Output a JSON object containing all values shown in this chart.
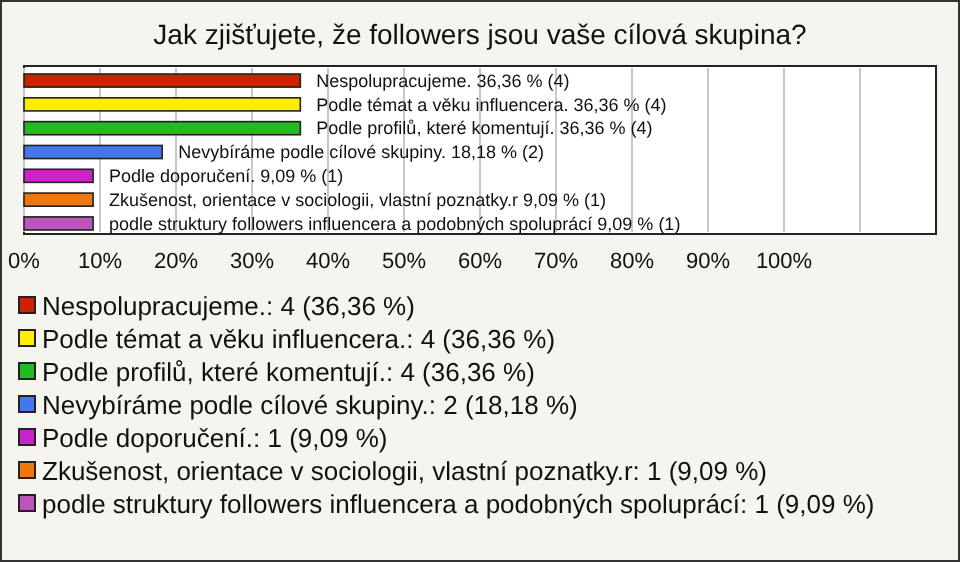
{
  "chart_data": {
    "type": "bar",
    "orientation": "horizontal",
    "title": "Jak zjišťujete, že followers jsou vaše cílová skupina?",
    "categories": [
      null,
      null,
      null,
      null,
      null,
      null,
      null
    ],
    "values": [
      36.36,
      36.36,
      36.36,
      18.18,
      9.09,
      9.09,
      9.09
    ],
    "colors": [
      "#cc2200",
      "#ffee00",
      "#22bb22",
      "#4477ee",
      "#cc22cc",
      "#ee7711",
      "#bb55bb"
    ],
    "value_labels": [
      "Nespolupracujeme. 36,36 % (4)",
      "Podle témat a věku influencera. 36,36 % (4)",
      "Podle profilů, které komentují. 36,36 % (4)",
      "Nevybíráme podle cílové skupiny. 18,18 % (2)",
      "Podle doporučení. 9,09 % (1)",
      "Zkušenost, orientace v sociologii, vlastní poznatky.r 9,09 % (1)",
      "podle struktury followers influencera a podobných spoluprácí 9,09 % (1)"
    ],
    "xlim": [
      0,
      120
    ],
    "xticks": [
      {
        "value": 0,
        "label": "0%"
      },
      {
        "value": 10,
        "label": "10%"
      },
      {
        "value": 20,
        "label": "20%"
      },
      {
        "value": 30,
        "label": "30%"
      },
      {
        "value": 40,
        "label": "40%"
      },
      {
        "value": 50,
        "label": "50%"
      },
      {
        "value": 60,
        "label": "60%"
      },
      {
        "value": 70,
        "label": "70%"
      },
      {
        "value": 80,
        "label": "80%"
      },
      {
        "value": 90,
        "label": "90%"
      },
      {
        "value": 100,
        "label": "100%"
      },
      {
        "value": 110,
        "label": null
      }
    ],
    "grid": "x",
    "annotations": [
      "Nespolupracujeme.: 4 (36,36 %)",
      "Podle témat a věku influencera.: 4 (36,36 %)",
      "Podle profilů, které komentují.: 4 (36,36 %)",
      "Nevybíráme podle cílové skupiny.: 2 (18,18 %)",
      "Podle doporučení.: 1 (9,09 %)",
      "Zkušenost, orientace v sociologii, vlastní poznatky.r: 1 (9,09 %)",
      "podle struktury followers influencera a podobných spoluprácí: 1 (9,09 %)"
    ]
  }
}
